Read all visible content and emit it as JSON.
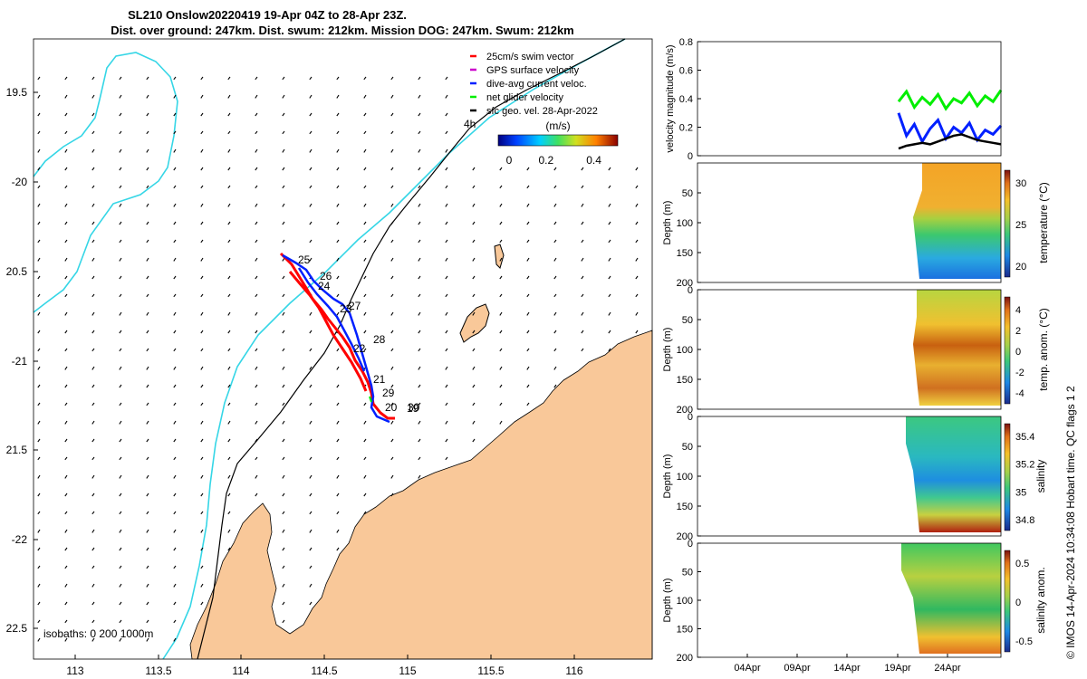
{
  "colors": {
    "land": "#f9c899",
    "coast_line": "#000000",
    "contour_200": "#000000",
    "contour_1000": "#35d6e6",
    "swim": "#ff0000",
    "gps": "#cc00cc",
    "current": "#0020ff",
    "net": "#00ee00",
    "geo": "#000000"
  },
  "map": {
    "title_line1": "SL210 Onslow20220419 19-Apr 04Z to 28-Apr 23Z.",
    "title_line2": "Dist. over ground: 247km. Dist. swum: 212km. Mission DOG: 247km. Swum: 212km",
    "legend": [
      {
        "label": "25cm/s swim vector",
        "color_key": "swim"
      },
      {
        "label": "GPS surface velocity",
        "color_key": "gps"
      },
      {
        "label": "dive-avg current veloc.",
        "color_key": "current"
      },
      {
        "label": "net glider velocity",
        "color_key": "net"
      },
      {
        "label": "sfc geo. vel. 28-Apr-2022",
        "color_key": "geo"
      }
    ],
    "time_label": "4h",
    "colorbar": {
      "label": "(m/s)",
      "ticks": [
        "0",
        "0.2",
        "0.4"
      ],
      "min": 0,
      "max": 0.5
    },
    "isobaths_label": "isobaths: 0    200   1000m",
    "lon_ticks": [
      "113",
      "113.5",
      "114",
      "114.5",
      "115",
      "115.5",
      "116"
    ],
    "lat_ticks": [
      "19.5",
      "-20",
      "20.5",
      "-21",
      "21.5",
      "-22",
      "22.5"
    ],
    "day_labels": [
      "25",
      "26",
      "24",
      "27",
      "23",
      "22",
      "28",
      "21",
      "29",
      "20",
      "30",
      "19"
    ]
  },
  "chart_data": [
    {
      "type": "line",
      "title": "",
      "ylabel": "velocity magnitude (m/s)",
      "ylim": [
        0,
        0.8
      ],
      "yticks": [
        "0",
        "0.2",
        "0.4",
        "0.6",
        "0.8"
      ],
      "series": [
        {
          "name": "net glider velocity",
          "color_key": "net",
          "values": [
            0.38,
            0.45,
            0.34,
            0.41,
            0.36,
            0.43,
            0.33,
            0.4,
            0.37,
            0.44,
            0.35,
            0.42,
            0.38,
            0.46
          ]
        },
        {
          "name": "dive-avg current veloc.",
          "color_key": "current",
          "values": [
            0.3,
            0.14,
            0.22,
            0.1,
            0.19,
            0.25,
            0.12,
            0.2,
            0.16,
            0.23,
            0.11,
            0.18,
            0.15,
            0.21
          ]
        },
        {
          "name": "sfc geo. vel.",
          "color_key": "geo",
          "values": [
            0.05,
            0.07,
            0.08,
            0.09,
            0.08,
            0.1,
            0.12,
            0.14,
            0.15,
            0.13,
            0.11,
            0.1,
            0.09,
            0.08
          ]
        }
      ]
    },
    {
      "type": "heatmap",
      "ylabel": "Depth (m)",
      "cblabel": "temperature (°C)",
      "ylim": [
        0,
        200
      ],
      "yticks": [
        "50",
        "100",
        "150",
        "200"
      ],
      "cbticks": [
        "30",
        "25",
        "20"
      ]
    },
    {
      "type": "heatmap",
      "ylabel": "Depth (m)",
      "cblabel": "temp. anom. (°C)",
      "ylim": [
        0,
        200
      ],
      "yticks": [
        "0",
        "50",
        "100",
        "150",
        "200"
      ],
      "cbticks": [
        "4",
        "2",
        "0",
        "-2",
        "-4"
      ]
    },
    {
      "type": "heatmap",
      "ylabel": "Depth (m)",
      "cblabel": "salinity",
      "ylim": [
        0,
        200
      ],
      "yticks": [
        "0",
        "50",
        "100",
        "150",
        "200"
      ],
      "cbticks": [
        "35.4",
        "35.2",
        "35",
        "34.8"
      ]
    },
    {
      "type": "heatmap",
      "ylabel": "Depth (m)",
      "cblabel": "salinity anom.",
      "ylim": [
        0,
        200
      ],
      "yticks": [
        "0",
        "50",
        "100",
        "150",
        "200"
      ],
      "cbticks": [
        "0.5",
        "0",
        "-0.5"
      ]
    }
  ],
  "time_axis": {
    "ticks": [
      "04Apr",
      "09Apr",
      "14Apr",
      "19Apr",
      "24Apr"
    ]
  },
  "footer_note": "© IMOS 14-Apr-2024 10:34:08 Hobart time. QC flags 1  2"
}
